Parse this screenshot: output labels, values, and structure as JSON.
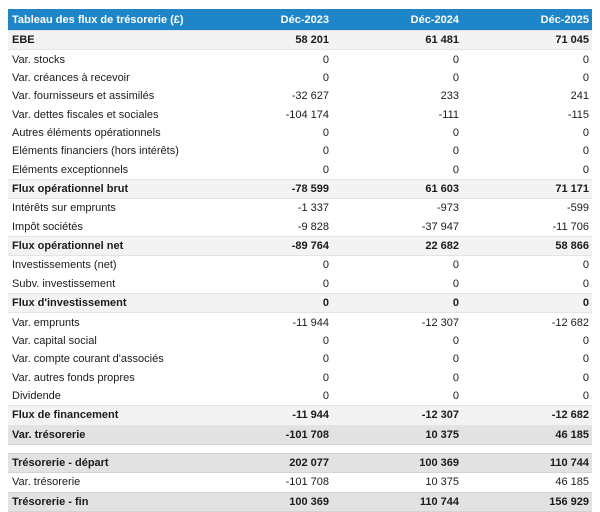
{
  "table": {
    "title": "Tableau des flux de trésorerie (£)",
    "columns": [
      "Déc-2023",
      "Déc-2024",
      "Déc-2025"
    ],
    "colors": {
      "header_bg": "#1e86c8",
      "header_text": "#ffffff",
      "subtotal_bg": "#f3f3f4",
      "emphasis_bg": "#e2e2e2"
    },
    "rows": [
      {
        "label": "EBE",
        "values": [
          "58 201",
          "61 481",
          "71 045"
        ],
        "style": "subtotal"
      },
      {
        "label": "Var. stocks",
        "values": [
          "0",
          "0",
          "0"
        ],
        "style": "normal"
      },
      {
        "label": "Var. créances à recevoir",
        "values": [
          "0",
          "0",
          "0"
        ],
        "style": "normal"
      },
      {
        "label": "Var. fournisseurs et assimilés",
        "values": [
          "-32 627",
          "233",
          "241"
        ],
        "style": "normal"
      },
      {
        "label": "Var. dettes fiscales et sociales",
        "values": [
          "-104 174",
          "-111",
          "-115"
        ],
        "style": "normal"
      },
      {
        "label": "Autres éléments opérationnels",
        "values": [
          "0",
          "0",
          "0"
        ],
        "style": "normal"
      },
      {
        "label": "Eléments financiers (hors intérêts)",
        "values": [
          "0",
          "0",
          "0"
        ],
        "style": "normal"
      },
      {
        "label": "Eléments exceptionnels",
        "values": [
          "0",
          "0",
          "0"
        ],
        "style": "normal"
      },
      {
        "label": "Flux opérationnel brut",
        "values": [
          "-78 599",
          "61 603",
          "71 171"
        ],
        "style": "subtotal"
      },
      {
        "label": "Intérêts sur emprunts",
        "values": [
          "-1 337",
          "-973",
          "-599"
        ],
        "style": "normal"
      },
      {
        "label": "Impôt sociétés",
        "values": [
          "-9 828",
          "-37 947",
          "-11 706"
        ],
        "style": "normal"
      },
      {
        "label": "Flux opérationnel net",
        "values": [
          "-89 764",
          "22 682",
          "58 866"
        ],
        "style": "subtotal"
      },
      {
        "label": "Investissements (net)",
        "values": [
          "0",
          "0",
          "0"
        ],
        "style": "normal"
      },
      {
        "label": "Subv. investissement",
        "values": [
          "0",
          "0",
          "0"
        ],
        "style": "normal"
      },
      {
        "label": "Flux d'investissement",
        "values": [
          "0",
          "0",
          "0"
        ],
        "style": "subtotal"
      },
      {
        "label": "Var. emprunts",
        "values": [
          "-11 944",
          "-12 307",
          "-12 682"
        ],
        "style": "normal"
      },
      {
        "label": "Var. capital social",
        "values": [
          "0",
          "0",
          "0"
        ],
        "style": "normal"
      },
      {
        "label": "Var. compte courant d'associés",
        "values": [
          "0",
          "0",
          "0"
        ],
        "style": "normal"
      },
      {
        "label": "Var. autres fonds propres",
        "values": [
          "0",
          "0",
          "0"
        ],
        "style": "normal"
      },
      {
        "label": "Dividende",
        "values": [
          "0",
          "0",
          "0"
        ],
        "style": "normal"
      },
      {
        "label": "Flux de financement",
        "values": [
          "-11 944",
          "-12 307",
          "-12 682"
        ],
        "style": "subtotal"
      },
      {
        "label": "Var. trésorerie",
        "values": [
          "-101 708",
          "10 375",
          "46 185"
        ],
        "style": "emphasis"
      },
      {
        "label": "",
        "values": [],
        "style": "spacer"
      },
      {
        "label": "Trésorerie - départ",
        "values": [
          "202 077",
          "100 369",
          "110 744"
        ],
        "style": "emphasis"
      },
      {
        "label": "Var. trésorerie",
        "values": [
          "-101 708",
          "10 375",
          "46 185"
        ],
        "style": "normal"
      },
      {
        "label": "Trésorerie - fin",
        "values": [
          "100 369",
          "110 744",
          "156 929"
        ],
        "style": "emphasis"
      }
    ]
  }
}
